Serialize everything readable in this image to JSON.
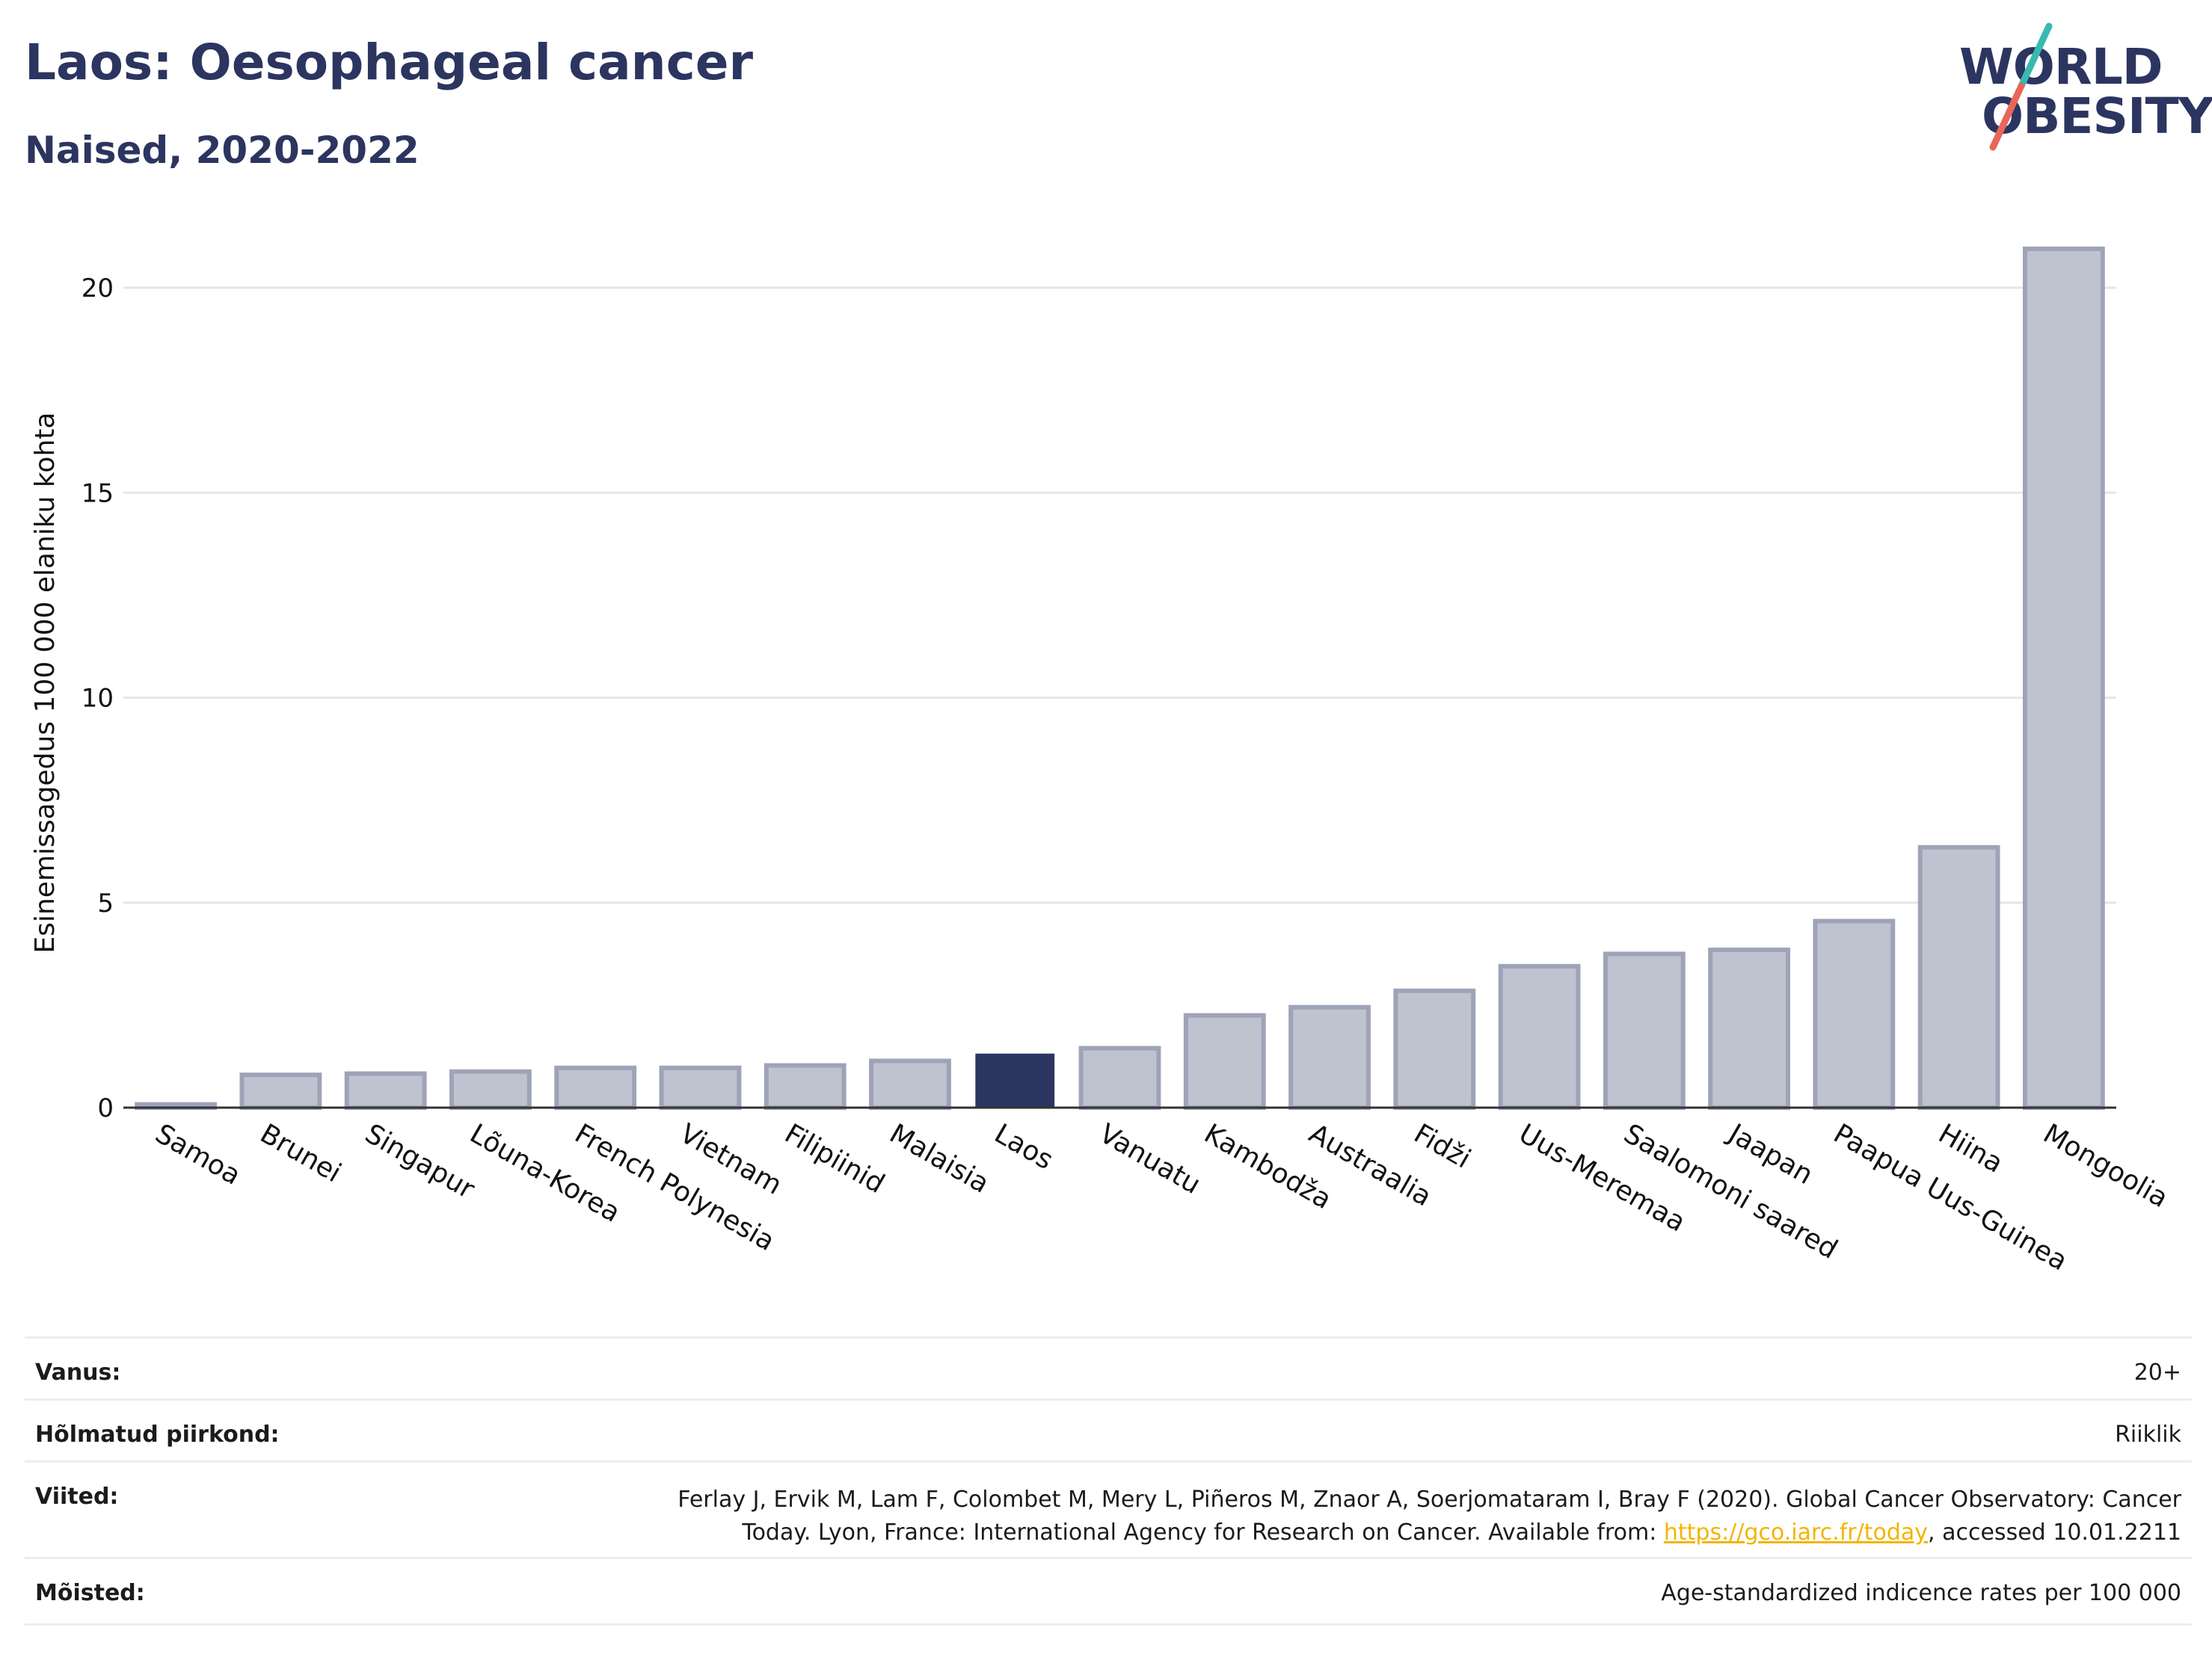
{
  "title": "Laos: Oesophageal cancer",
  "subtitle": "Naised, 2020-2022",
  "logo": {
    "line1": "WORLD",
    "line2": "OBESITY",
    "accent_top": "#38b9b1",
    "accent_bottom": "#e8665a",
    "color": "#2c3560"
  },
  "colors": {
    "bar": "#bfc3d0",
    "bar_edge": "#9ea3b8",
    "highlight": "#2c3560",
    "grid": "#e4e6ec",
    "axis": "#333333"
  },
  "chart_data": {
    "type": "bar",
    "title": "Laos: Oesophageal cancer",
    "subtitle": "Naised, 2020-2022",
    "ylabel": "Esinemissagedus 100 000 elaniku kohta",
    "xlabel": "",
    "ylim": [
      0,
      21
    ],
    "yticks": [
      0,
      5,
      10,
      15,
      20
    ],
    "grid": true,
    "highlight_category": "Laos",
    "categories": [
      "Samoa",
      "Brunei",
      "Singapur",
      "Lõuna-Korea",
      "French Polynesia",
      "Vietnam",
      "Filipiinid",
      "Malaisia",
      "Laos",
      "Vanuatu",
      "Kambodža",
      "Austraalia",
      "Fidži",
      "Uus-Meremaa",
      "Saalomoni saared",
      "Jaapan",
      "Paapua Uus-Guinea",
      "Hiina",
      "Mongoolia"
    ],
    "values": [
      0.08,
      0.8,
      0.83,
      0.88,
      0.97,
      0.97,
      1.03,
      1.14,
      1.3,
      1.45,
      2.25,
      2.45,
      2.85,
      3.45,
      3.75,
      3.85,
      4.55,
      6.35,
      20.95
    ]
  },
  "info": {
    "age_label": "Vanus:",
    "age_value": "20+",
    "area_label": "Hõlmatud piirkond:",
    "area_value": "Riiklik",
    "ref_label": "Viited:",
    "ref_line1": "Ferlay J, Ervik M, Lam F, Colombet M, Mery L, Piñeros M, Znaor A, Soerjomataram I, Bray F (2020). Global Cancer Observatory: Cancer",
    "ref_line2_pre": "Today. Lyon, France: International Agency for Research on Cancer. Available from: ",
    "ref_link": "https://gco.iarc.fr/today",
    "ref_line2_post": ", accessed 10.01.2211",
    "def_label": "Mõisted:",
    "def_value": "Age-standardized indicence rates per 100 000"
  }
}
